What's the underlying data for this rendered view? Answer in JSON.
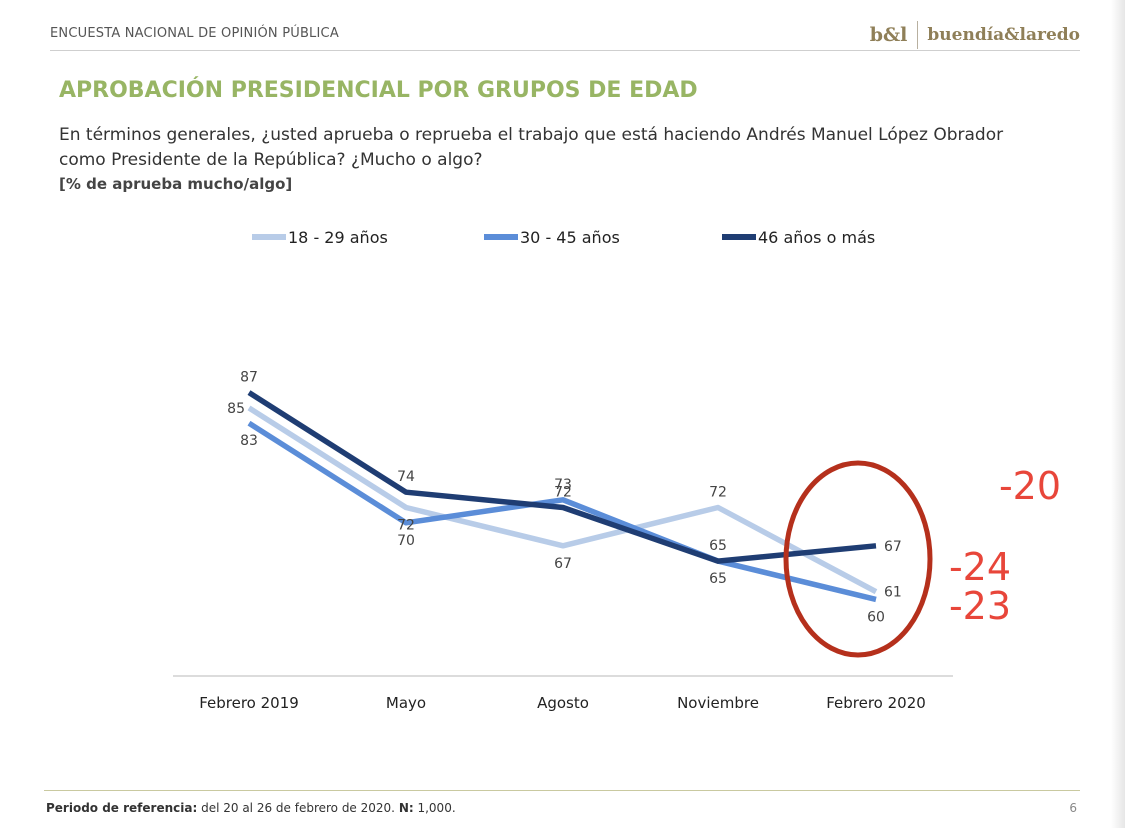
{
  "header": {
    "survey_title": "ENCUESTA NACIONAL DE OPINIÓN PÚBLICA",
    "logo_mark": "b&l",
    "logo_text": "buendía&laredo"
  },
  "title": "APROBACIÓN PRESIDENCIAL POR GRUPOS DE EDAD",
  "question": "En términos generales, ¿usted aprueba o reprueba el trabajo que está haciendo Andrés Manuel López Obrador como Presidente de la República? ¿Mucho o algo?",
  "note": "[% de aprueba mucho/algo]",
  "chart_data": {
    "type": "line",
    "categories": [
      "Febrero 2019",
      "Mayo",
      "Agosto",
      "Noviembre",
      "Febrero 2020"
    ],
    "series": [
      {
        "name": "18 - 29 años",
        "values": [
          85,
          72,
          67,
          72,
          61
        ],
        "color": "#b8cce8",
        "label_pos": [
          "left",
          "below",
          "below",
          "above",
          "right"
        ]
      },
      {
        "name": "30 - 45 años",
        "values": [
          83,
          70,
          73,
          65,
          60
        ],
        "color": "#5b8dd8",
        "label_pos": [
          "below",
          "below",
          "above",
          "below",
          "below"
        ]
      },
      {
        "name": "46 años o más",
        "values": [
          87,
          74,
          72,
          65,
          67
        ],
        "color": "#1f3d73",
        "label_pos": [
          "above",
          "above",
          "above",
          "above",
          "right"
        ]
      }
    ],
    "ylim": [
      50,
      100
    ],
    "legend_position": "top",
    "grid": false,
    "annotations": {
      "highlight": "Febrero 2020",
      "highlight_color": "#b5301c",
      "changes": [
        "-20",
        "-24",
        "-23"
      ],
      "changes_color": "#e8463a"
    }
  },
  "footer": {
    "label": "Periodo de referencia:",
    "text": " del 20 al 26 de febrero de 2020. ",
    "n_label": "N:",
    "n_value": " 1,000."
  },
  "page_number": "6"
}
